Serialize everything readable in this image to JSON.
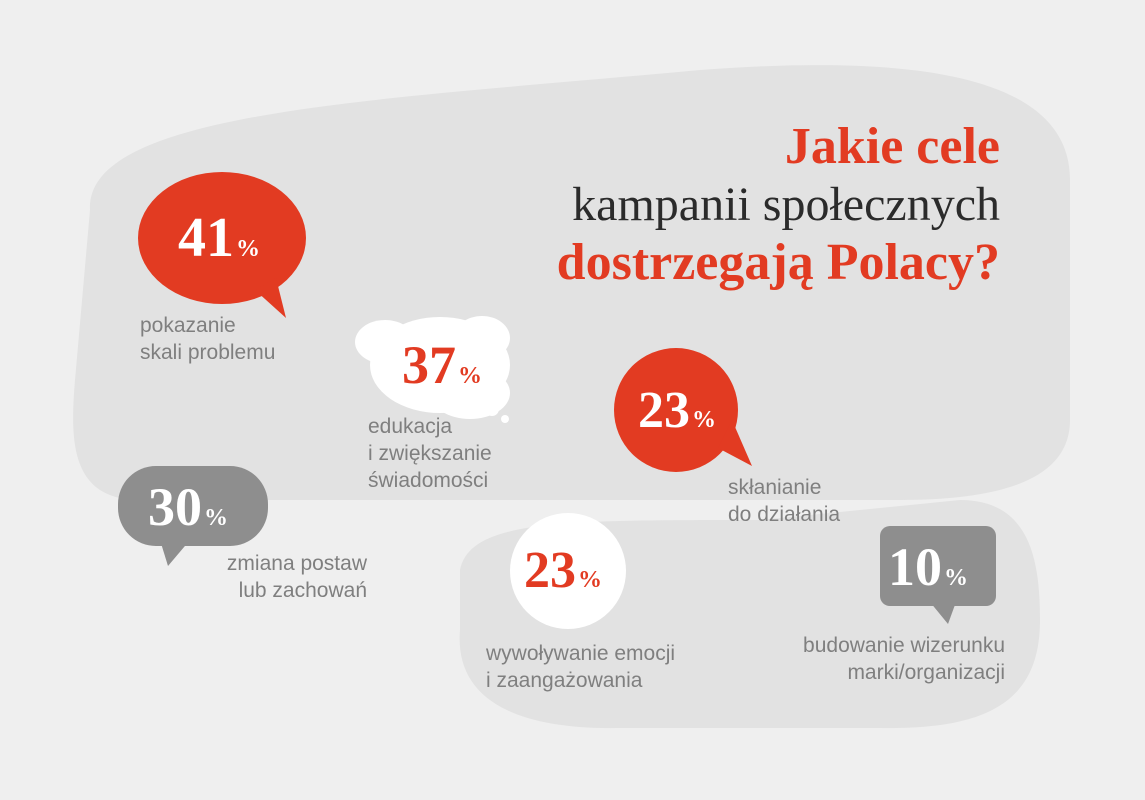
{
  "title": {
    "line1": "Jakie cele",
    "line2": "kampanii społecznych",
    "line3": "dostrzegają Polacy?"
  },
  "colors": {
    "accent": "#e23b22",
    "dark_bubble": "#8e8e8e",
    "light_bubble": "#ffffff",
    "panel": "#e2e2e2",
    "background": "#efefef",
    "label": "#7f7f7f"
  },
  "chart_data": {
    "type": "bubble-infographic",
    "unit": "%",
    "items": [
      {
        "value": 41,
        "label_lines": [
          "pokazanie",
          "skali problemu"
        ],
        "style": "red"
      },
      {
        "value": 37,
        "label_lines": [
          "edukacja",
          "i zwiększanie",
          "świadomości"
        ],
        "style": "white"
      },
      {
        "value": 23,
        "label_lines": [
          "skłanianie",
          "do działania"
        ],
        "style": "red"
      },
      {
        "value": 30,
        "label_lines": [
          "zmiana postaw",
          "lub zachowań"
        ],
        "style": "gray"
      },
      {
        "value": 23,
        "label_lines": [
          "wywoływanie emocji",
          "i zaangażowania"
        ],
        "style": "white"
      },
      {
        "value": 10,
        "label_lines": [
          "budowanie wizerunku",
          "marki/organizacji"
        ],
        "style": "gray"
      }
    ]
  }
}
